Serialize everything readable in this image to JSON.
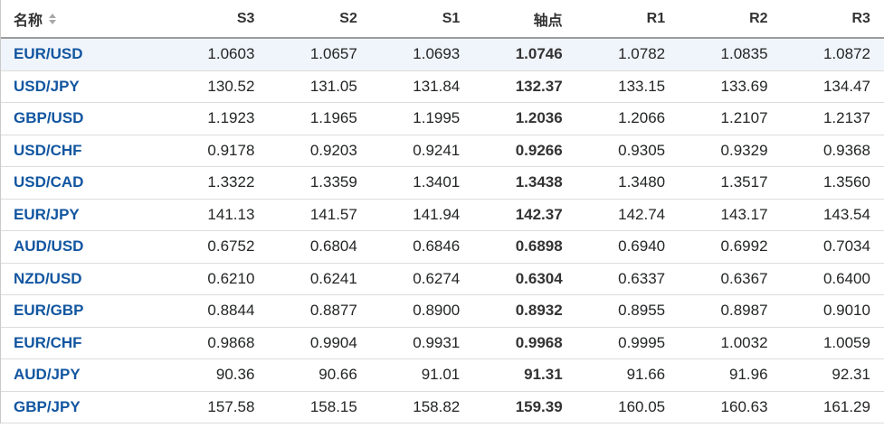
{
  "colors": {
    "link_blue": "#1256a0",
    "header_text": "#333333",
    "value_text": "#232526",
    "header_border": "#9c9c9c",
    "row_border": "#dcdcdc",
    "row_highlight": "#f0f5fb",
    "sort_icon_gray": "#a8a8a8"
  },
  "table": {
    "columns": [
      "名称",
      "S3",
      "S2",
      "S1",
      "轴点",
      "R1",
      "R2",
      "R3"
    ],
    "pivot_column": "轴点",
    "highlighted_row_index": 0,
    "rows": [
      {
        "name": "EUR/USD",
        "s3": "1.0603",
        "s2": "1.0657",
        "s1": "1.0693",
        "pivot": "1.0746",
        "r1": "1.0782",
        "r2": "1.0835",
        "r3": "1.0872"
      },
      {
        "name": "USD/JPY",
        "s3": "130.52",
        "s2": "131.05",
        "s1": "131.84",
        "pivot": "132.37",
        "r1": "133.15",
        "r2": "133.69",
        "r3": "134.47"
      },
      {
        "name": "GBP/USD",
        "s3": "1.1923",
        "s2": "1.1965",
        "s1": "1.1995",
        "pivot": "1.2036",
        "r1": "1.2066",
        "r2": "1.2107",
        "r3": "1.2137"
      },
      {
        "name": "USD/CHF",
        "s3": "0.9178",
        "s2": "0.9203",
        "s1": "0.9241",
        "pivot": "0.9266",
        "r1": "0.9305",
        "r2": "0.9329",
        "r3": "0.9368"
      },
      {
        "name": "USD/CAD",
        "s3": "1.3322",
        "s2": "1.3359",
        "s1": "1.3401",
        "pivot": "1.3438",
        "r1": "1.3480",
        "r2": "1.3517",
        "r3": "1.3560"
      },
      {
        "name": "EUR/JPY",
        "s3": "141.13",
        "s2": "141.57",
        "s1": "141.94",
        "pivot": "142.37",
        "r1": "142.74",
        "r2": "143.17",
        "r3": "143.54"
      },
      {
        "name": "AUD/USD",
        "s3": "0.6752",
        "s2": "0.6804",
        "s1": "0.6846",
        "pivot": "0.6898",
        "r1": "0.6940",
        "r2": "0.6992",
        "r3": "0.7034"
      },
      {
        "name": "NZD/USD",
        "s3": "0.6210",
        "s2": "0.6241",
        "s1": "0.6274",
        "pivot": "0.6304",
        "r1": "0.6337",
        "r2": "0.6367",
        "r3": "0.6400"
      },
      {
        "name": "EUR/GBP",
        "s3": "0.8844",
        "s2": "0.8877",
        "s1": "0.8900",
        "pivot": "0.8932",
        "r1": "0.8955",
        "r2": "0.8987",
        "r3": "0.9010"
      },
      {
        "name": "EUR/CHF",
        "s3": "0.9868",
        "s2": "0.9904",
        "s1": "0.9931",
        "pivot": "0.9968",
        "r1": "0.9995",
        "r2": "1.0032",
        "r3": "1.0059"
      },
      {
        "name": "AUD/JPY",
        "s3": "90.36",
        "s2": "90.66",
        "s1": "91.01",
        "pivot": "91.31",
        "r1": "91.66",
        "r2": "91.96",
        "r3": "92.31"
      },
      {
        "name": "GBP/JPY",
        "s3": "157.58",
        "s2": "158.15",
        "s1": "158.82",
        "pivot": "159.39",
        "r1": "160.05",
        "r2": "160.63",
        "r3": "161.29"
      }
    ]
  }
}
